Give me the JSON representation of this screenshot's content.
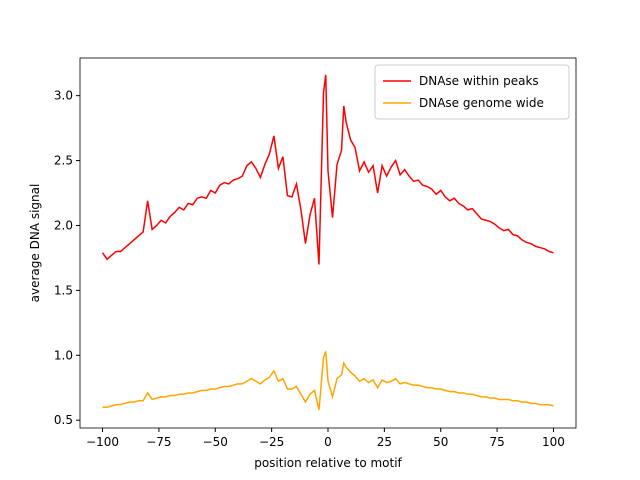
{
  "chart_data": {
    "type": "line",
    "xlabel": "position relative to motif",
    "ylabel": "average DNA signal",
    "x": [
      -100,
      -98,
      -96,
      -94,
      -92,
      -90,
      -88,
      -86,
      -84,
      -82,
      -80,
      -78,
      -76,
      -74,
      -72,
      -70,
      -68,
      -66,
      -64,
      -62,
      -60,
      -58,
      -56,
      -54,
      -52,
      -50,
      -48,
      -46,
      -44,
      -42,
      -40,
      -38,
      -36,
      -34,
      -32,
      -30,
      -28,
      -26,
      -24,
      -22,
      -20,
      -18,
      -16,
      -14,
      -12,
      -10,
      -8,
      -6,
      -4,
      -2,
      -1,
      0,
      2,
      4,
      6,
      7,
      8,
      10,
      12,
      14,
      16,
      18,
      20,
      22,
      24,
      26,
      28,
      30,
      32,
      34,
      36,
      38,
      40,
      42,
      44,
      46,
      48,
      50,
      52,
      54,
      56,
      58,
      60,
      62,
      64,
      66,
      68,
      70,
      72,
      74,
      76,
      78,
      80,
      82,
      84,
      86,
      88,
      90,
      92,
      94,
      96,
      98,
      100
    ],
    "series": [
      {
        "name": "DNAse within peaks",
        "color": "#ff0000",
        "values": [
          1.79,
          1.74,
          1.77,
          1.8,
          1.8,
          1.83,
          1.86,
          1.89,
          1.92,
          1.95,
          2.19,
          1.97,
          2.0,
          2.04,
          2.02,
          2.07,
          2.1,
          2.14,
          2.12,
          2.17,
          2.16,
          2.21,
          2.22,
          2.21,
          2.27,
          2.25,
          2.31,
          2.33,
          2.32,
          2.35,
          2.36,
          2.38,
          2.46,
          2.49,
          2.44,
          2.37,
          2.47,
          2.55,
          2.69,
          2.44,
          2.53,
          2.23,
          2.22,
          2.32,
          2.12,
          1.86,
          2.08,
          2.21,
          1.7,
          3.02,
          3.16,
          2.42,
          2.06,
          2.47,
          2.58,
          2.92,
          2.8,
          2.66,
          2.6,
          2.42,
          2.49,
          2.41,
          2.46,
          2.25,
          2.46,
          2.38,
          2.45,
          2.5,
          2.39,
          2.43,
          2.38,
          2.34,
          2.35,
          2.31,
          2.3,
          2.28,
          2.24,
          2.27,
          2.22,
          2.19,
          2.21,
          2.17,
          2.15,
          2.12,
          2.13,
          2.09,
          2.05,
          2.04,
          2.03,
          2.01,
          1.98,
          1.96,
          1.97,
          1.93,
          1.92,
          1.89,
          1.87,
          1.86,
          1.84,
          1.83,
          1.82,
          1.8,
          1.79
        ]
      },
      {
        "name": "DNAse genome wide",
        "color": "#ffa500",
        "values": [
          0.6,
          0.6,
          0.61,
          0.62,
          0.62,
          0.63,
          0.64,
          0.64,
          0.65,
          0.65,
          0.71,
          0.66,
          0.67,
          0.68,
          0.68,
          0.69,
          0.69,
          0.7,
          0.7,
          0.71,
          0.71,
          0.72,
          0.73,
          0.73,
          0.74,
          0.74,
          0.75,
          0.76,
          0.76,
          0.77,
          0.78,
          0.78,
          0.8,
          0.82,
          0.8,
          0.78,
          0.81,
          0.83,
          0.88,
          0.8,
          0.82,
          0.74,
          0.74,
          0.76,
          0.7,
          0.64,
          0.7,
          0.73,
          0.58,
          0.98,
          1.03,
          0.8,
          0.68,
          0.82,
          0.85,
          0.94,
          0.91,
          0.87,
          0.84,
          0.8,
          0.82,
          0.79,
          0.81,
          0.75,
          0.81,
          0.79,
          0.8,
          0.82,
          0.78,
          0.79,
          0.78,
          0.77,
          0.77,
          0.76,
          0.75,
          0.75,
          0.74,
          0.74,
          0.73,
          0.72,
          0.72,
          0.71,
          0.71,
          0.7,
          0.7,
          0.69,
          0.68,
          0.68,
          0.67,
          0.67,
          0.66,
          0.66,
          0.66,
          0.65,
          0.65,
          0.64,
          0.64,
          0.63,
          0.63,
          0.62,
          0.62,
          0.62,
          0.61
        ]
      }
    ],
    "xlim": [
      -110,
      110
    ],
    "xticks": [
      {
        "value": -100,
        "label": "−100"
      },
      {
        "value": -75,
        "label": "−75"
      },
      {
        "value": -50,
        "label": "−50"
      },
      {
        "value": -25,
        "label": "−25"
      },
      0,
      25,
      50,
      75,
      100
    ],
    "ylim": [
      0.44,
      3.29
    ],
    "yticks": [
      0.5,
      {
        "value": 1.0,
        "label": "1.0"
      },
      1.5,
      {
        "value": 2.0,
        "label": "2.0"
      },
      2.5,
      {
        "value": 3.0,
        "label": "3.0"
      }
    ],
    "legend": "upper right"
  }
}
